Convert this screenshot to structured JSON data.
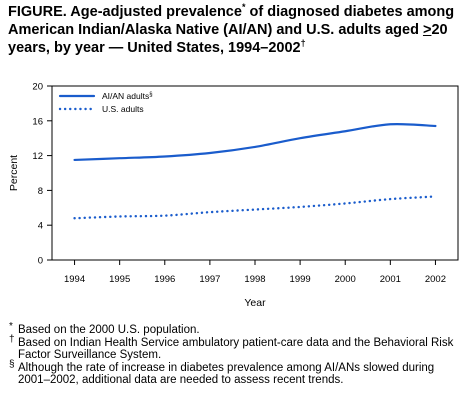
{
  "title": {
    "part1": "FIGURE. Age-adjusted prevalence",
    "mark1": "*",
    "part2": " of diagnosed diabetes among American Indian/Alaska Native (AI/AN) and U.S. adults aged ",
    "ge": ">",
    "part3": "20 years, by year — United States, 1994–2002",
    "mark2": "†"
  },
  "chart_data": {
    "type": "line",
    "x": [
      1994,
      1995,
      1996,
      1997,
      1998,
      1999,
      2000,
      2001,
      2002
    ],
    "series": [
      {
        "name": "AI/AN adults",
        "name_mark": "§",
        "style": "solid",
        "color": "#1a5ccc",
        "values": [
          11.5,
          11.7,
          11.9,
          12.3,
          13.0,
          14.0,
          14.8,
          15.6,
          15.4
        ]
      },
      {
        "name": "U.S. adults",
        "style": "dotted",
        "color": "#1a5ccc",
        "values": [
          4.8,
          5.0,
          5.1,
          5.5,
          5.8,
          6.1,
          6.5,
          7.0,
          7.3
        ]
      }
    ],
    "ylim": [
      0,
      20
    ],
    "yticks": [
      0,
      4,
      8,
      12,
      16,
      20
    ],
    "xlabel": "Year",
    "ylabel": "Percent",
    "legend": "top-left",
    "grid": false
  },
  "footnotes": [
    {
      "mark": "*",
      "text": "Based on the 2000 U.S. population."
    },
    {
      "mark": "†",
      "text": "Based on Indian Health Service ambulatory patient-care data and the Behavioral Risk Factor Surveillance System."
    },
    {
      "mark": "§",
      "text": "Although the rate of increase in diabetes prevalence among AI/ANs slowed during 2001–2002, additional data are needed to assess recent trends."
    }
  ]
}
